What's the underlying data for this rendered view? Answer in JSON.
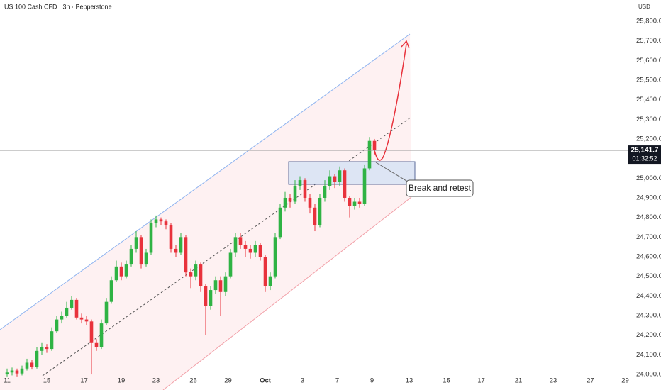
{
  "chart_data": {
    "type": "candlestick",
    "title": "US 100 Cash CFD · 3h · Pepperstone",
    "currency": "USD",
    "annotation": "Break and retest",
    "last_price": {
      "value": 25141.7,
      "label": "25,141.7"
    },
    "countdown": "01:32:52",
    "up_color": "#2fb344",
    "down_color": "#e8323c",
    "grid": false,
    "ylim": [
      23993,
      25908
    ],
    "xlim": [
      -1.43,
      125
    ],
    "yticks": [
      {
        "value": 24000,
        "label": "24,000.0"
      },
      {
        "value": 24100,
        "label": "24,100.0"
      },
      {
        "value": 24200,
        "label": "24,200.0"
      },
      {
        "value": 24300,
        "label": "24,300.0"
      },
      {
        "value": 24400,
        "label": "24,400.0"
      },
      {
        "value": 24500,
        "label": "24,500.0"
      },
      {
        "value": 24600,
        "label": "24,600.0"
      },
      {
        "value": 24700,
        "label": "24,700.0"
      },
      {
        "value": 24800,
        "label": "24,800.0"
      },
      {
        "value": 24900,
        "label": "24,900.0"
      },
      {
        "value": 25000,
        "label": "25,000.0"
      },
      {
        "value": 25200,
        "label": "25,200.0"
      },
      {
        "value": 25300,
        "label": "25,300.0"
      },
      {
        "value": 25400,
        "label": "25,400.0"
      },
      {
        "value": 25500,
        "label": "25,500.0"
      },
      {
        "value": 25600,
        "label": "25,600.0"
      },
      {
        "value": 25700,
        "label": "25,700.0"
      },
      {
        "value": 25800,
        "label": "25,800.0"
      }
    ],
    "xticks": [
      {
        "value": 0,
        "label": "11"
      },
      {
        "value": 8,
        "label": "15"
      },
      {
        "value": 15.5,
        "label": "17"
      },
      {
        "value": 23,
        "label": "19"
      },
      {
        "value": 30,
        "label": "23"
      },
      {
        "value": 37.5,
        "label": "25"
      },
      {
        "value": 44.5,
        "label": "29"
      },
      {
        "value": 52,
        "label": "Oct"
      },
      {
        "value": 59.5,
        "label": "3"
      },
      {
        "value": 66.5,
        "label": "7"
      },
      {
        "value": 73.5,
        "label": "9"
      },
      {
        "value": 81,
        "label": "13"
      },
      {
        "value": 88.5,
        "label": "15"
      },
      {
        "value": 95.5,
        "label": "17"
      },
      {
        "value": 103,
        "label": "21"
      },
      {
        "value": 110,
        "label": "23"
      },
      {
        "value": 117.5,
        "label": "27"
      },
      {
        "value": 124.5,
        "label": "29"
      }
    ],
    "x": [
      0,
      1,
      2,
      3,
      4,
      5,
      6,
      7,
      8,
      9,
      10,
      11,
      12,
      13,
      14,
      15,
      16,
      17,
      18,
      19,
      20,
      21,
      22,
      23,
      24,
      25,
      26,
      27,
      28,
      29,
      30,
      31,
      32,
      33,
      34,
      35,
      36,
      37,
      38,
      39,
      40,
      41,
      42,
      43,
      44,
      45,
      46,
      47,
      48,
      49,
      50,
      51,
      52,
      53,
      54,
      55,
      56,
      57,
      58,
      59,
      60,
      61,
      62,
      63,
      64,
      65,
      66,
      67,
      68,
      69,
      70,
      71,
      72,
      73,
      74
    ],
    "open": [
      24000,
      24010,
      24020,
      24005,
      24030,
      24060,
      24040,
      24120,
      24140,
      24130,
      24220,
      24280,
      24300,
      24340,
      24380,
      24290,
      24280,
      24270,
      24160,
      24140,
      24260,
      24370,
      24480,
      24550,
      24500,
      24560,
      24640,
      24700,
      24560,
      24620,
      24770,
      24790,
      24780,
      24760,
      24640,
      24620,
      24700,
      24520,
      24500,
      24560,
      24450,
      24350,
      24430,
      24480,
      24420,
      24500,
      24620,
      24700,
      24660,
      24640,
      24620,
      24660,
      24600,
      24450,
      24500,
      24700,
      24850,
      24900,
      24880,
      24960,
      24990,
      24900,
      24850,
      24760,
      24900,
      24960,
      25010,
      24980,
      25040,
      24900,
      24860,
      24880,
      24870,
      25050,
      25190
    ],
    "high": [
      24030,
      24035,
      24030,
      24045,
      24080,
      24075,
      24140,
      24160,
      24155,
      24240,
      24300,
      24320,
      24370,
      24400,
      24390,
      24310,
      24300,
      24280,
      24180,
      24280,
      24390,
      24500,
      24580,
      24570,
      24580,
      24660,
      24730,
      24710,
      24640,
      24790,
      24810,
      24800,
      24790,
      24770,
      24660,
      24720,
      24710,
      24540,
      24580,
      24570,
      24460,
      24450,
      24500,
      24500,
      24520,
      24640,
      24720,
      24720,
      24680,
      24660,
      24680,
      24670,
      24610,
      24520,
      24720,
      24870,
      24930,
      24920,
      24990,
      25010,
      25000,
      24920,
      24870,
      24920,
      24990,
      25040,
      25020,
      25060,
      25050,
      24910,
      24900,
      24900,
      25070,
      25210,
      25200
    ],
    "low": [
      23990,
      23995,
      23990,
      23995,
      24020,
      24025,
      24030,
      24100,
      24110,
      24120,
      24210,
      24260,
      24290,
      24330,
      24280,
      24260,
      24250,
      24000,
      24120,
      24130,
      24250,
      24360,
      24470,
      24480,
      24490,
      24550,
      24620,
      24540,
      24550,
      24610,
      24750,
      24760,
      24740,
      24620,
      24600,
      24610,
      24500,
      24440,
      24480,
      24420,
      24200,
      24330,
      24410,
      24300,
      24400,
      24490,
      24600,
      24640,
      24600,
      24590,
      24600,
      24580,
      24420,
      24430,
      24490,
      24690,
      24830,
      24850,
      24870,
      24940,
      24880,
      24820,
      24730,
      24750,
      24880,
      24940,
      24950,
      24960,
      24880,
      24800,
      24840,
      24850,
      24860,
      25040,
      25120
    ],
    "close": [
      24010,
      24020,
      24005,
      24030,
      24060,
      24040,
      24120,
      24140,
      24130,
      24220,
      24280,
      24300,
      24340,
      24380,
      24290,
      24280,
      24270,
      24160,
      24140,
      24260,
      24370,
      24480,
      24550,
      24500,
      24560,
      24640,
      24700,
      24560,
      24620,
      24770,
      24790,
      24780,
      24760,
      24640,
      24620,
      24700,
      24520,
      24500,
      24560,
      24450,
      24350,
      24430,
      24480,
      24420,
      24500,
      24620,
      24700,
      24660,
      24640,
      24620,
      24660,
      24600,
      24450,
      24500,
      24700,
      24850,
      24900,
      24880,
      24960,
      24990,
      24900,
      24850,
      24760,
      24900,
      24960,
      25010,
      24980,
      25040,
      24900,
      24860,
      24880,
      24870,
      25050,
      25190,
      25141.7
    ]
  }
}
